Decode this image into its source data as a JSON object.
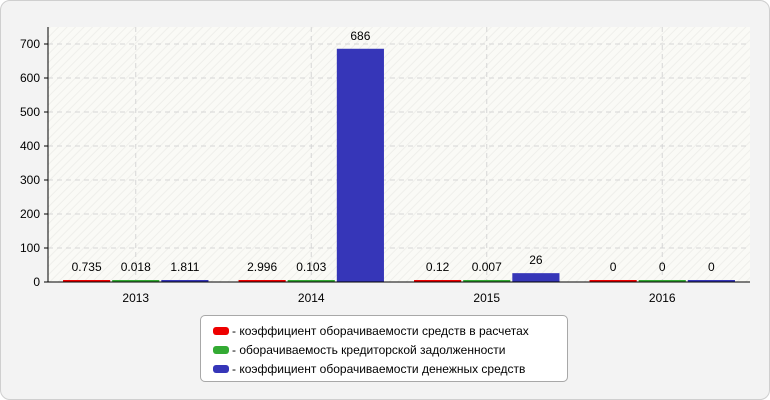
{
  "chart_data": {
    "type": "bar",
    "categories": [
      "2013",
      "2014",
      "2015",
      "2016"
    ],
    "series": [
      {
        "name": "- коэффициент оборачиваемости средств в расчетах",
        "color": "#ee0000",
        "values": [
          0.735,
          2.996,
          0.12,
          0
        ],
        "labels": [
          "0.735",
          "2.996",
          "0.12",
          "0"
        ]
      },
      {
        "name": "- оборачиваемость кредиторской задолженности",
        "color": "#33aa33",
        "values": [
          0.018,
          0.103,
          0.007,
          0
        ],
        "labels": [
          "0.018",
          "0.103",
          "0.007",
          "0"
        ]
      },
      {
        "name": "- коэффициент оборачиваемости денежных средств",
        "color": "#3636b8",
        "values": [
          1.811,
          686,
          26,
          0
        ],
        "labels": [
          "1.811",
          "686",
          "26",
          "0"
        ]
      }
    ],
    "ylim": [
      0,
      750
    ],
    "yticks": [
      "0",
      "100",
      "200",
      "300",
      "400",
      "500",
      "600",
      "700"
    ],
    "ytick_values": [
      0,
      100,
      200,
      300,
      400,
      500,
      600,
      700
    ],
    "grid": true,
    "legend_position": "bottom-center"
  }
}
